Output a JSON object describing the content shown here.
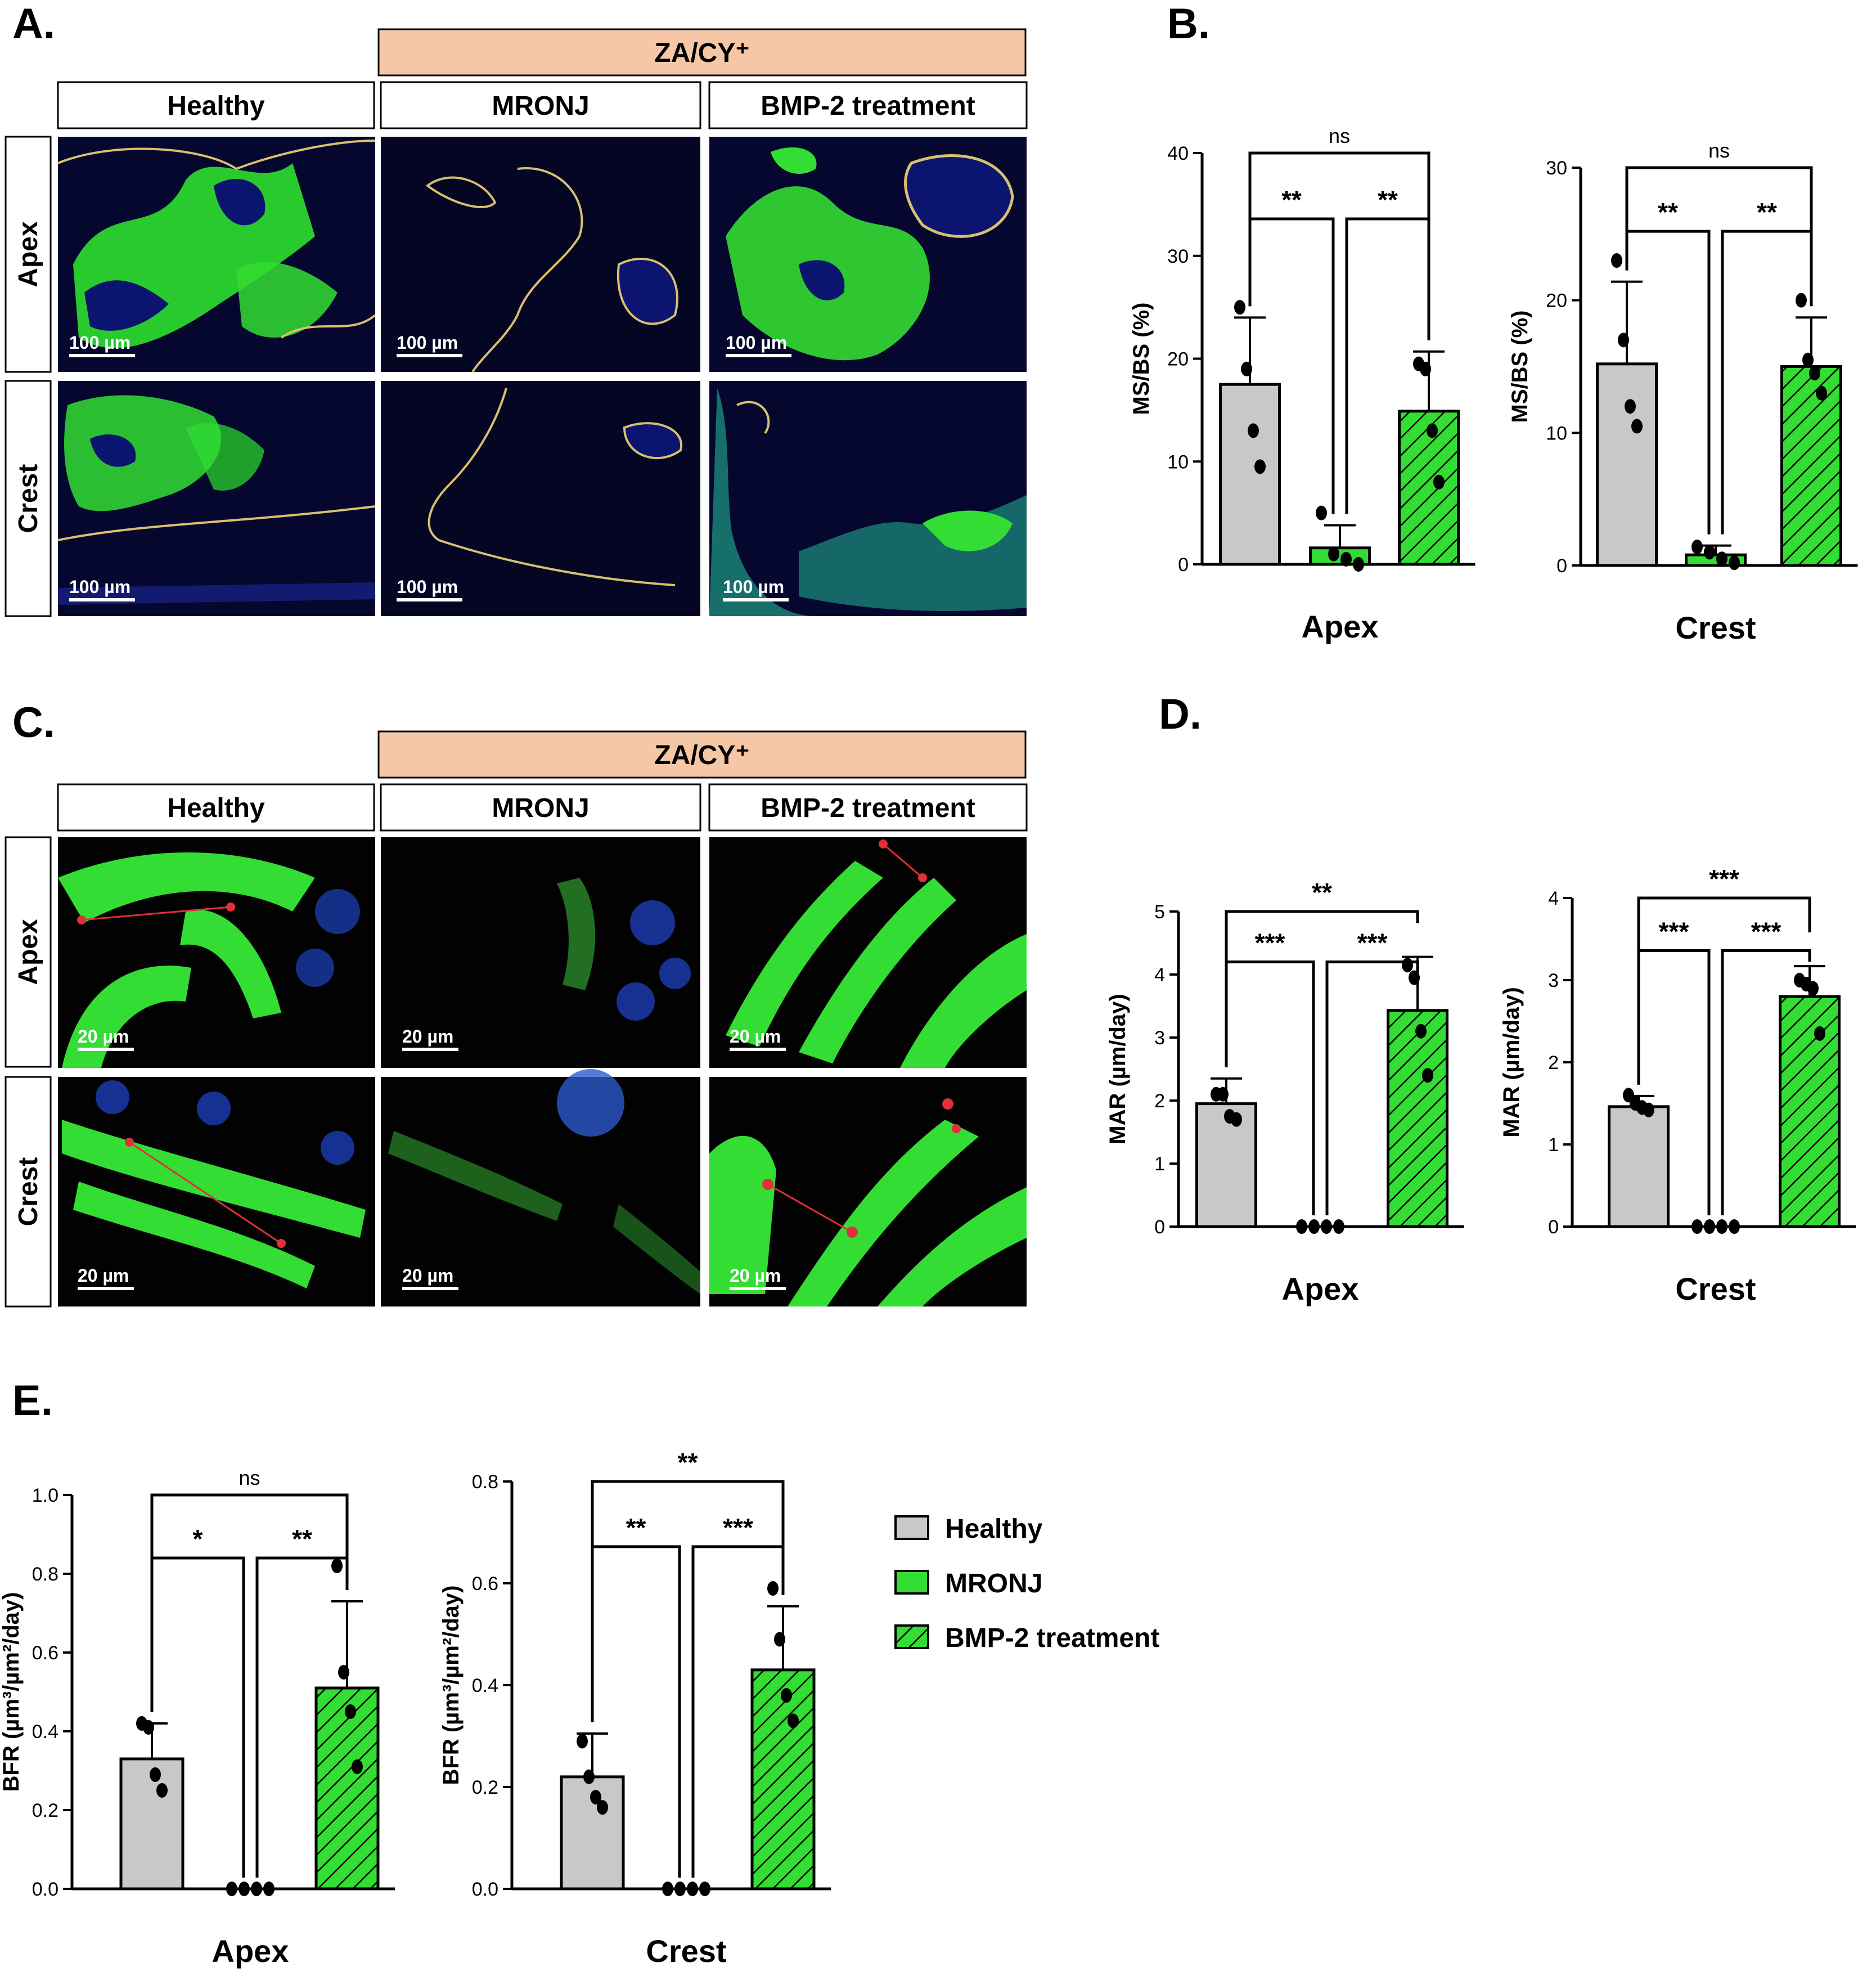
{
  "panel_labels": [
    "A.",
    "B.",
    "C.",
    "D.",
    "E."
  ],
  "micrographs": {
    "treatment_group": "ZA/CY⁺",
    "columns": [
      "Healthy",
      "MRONJ",
      "BMP-2 treatment"
    ],
    "rows": [
      "Apex",
      "Crest"
    ],
    "scale_bar_A": "100 µm",
    "scale_bar_C": "20 µm"
  },
  "legend": {
    "items": [
      {
        "label": "Healthy",
        "color": "#c8c8c8",
        "pattern": "solid"
      },
      {
        "label": "MRONJ",
        "color": "#33dd33",
        "pattern": "solid"
      },
      {
        "label": "BMP-2 treatment",
        "color": "#33dd33",
        "pattern": "hatch"
      }
    ]
  },
  "colors": {
    "healthy": "#c8c8c8",
    "mronj": "#33dd33",
    "bmp2": "#33dd33",
    "edge": "#000000"
  },
  "chart_data": [
    {
      "panel": "B.",
      "type": "bar",
      "xlabel": "Apex",
      "ylabel": "MS/BS (%)",
      "categories": [
        "Healthy",
        "MRONJ",
        "BMP-2 treatment"
      ],
      "values": [
        17.5,
        1.6,
        14.9
      ],
      "errors": [
        6.5,
        2.2,
        5.8
      ],
      "points": [
        [
          25,
          19,
          13,
          9.5
        ],
        [
          5,
          1,
          0.5,
          0
        ],
        [
          19.5,
          19,
          13,
          8
        ]
      ],
      "ylim": [
        0,
        40
      ],
      "yticks": [
        0,
        10,
        20,
        30,
        40
      ],
      "comparisons": [
        {
          "from": 0,
          "to": 1,
          "label": "**"
        },
        {
          "from": 1,
          "to": 2,
          "label": "**"
        },
        {
          "from": 0,
          "to": 2,
          "label": "ns"
        }
      ]
    },
    {
      "panel": "B.",
      "type": "bar",
      "xlabel": "Crest",
      "ylabel": "MS/BS (%)",
      "categories": [
        "Healthy",
        "MRONJ",
        "BMP-2 treatment"
      ],
      "values": [
        15.2,
        0.8,
        15.0
      ],
      "errors": [
        6.2,
        0.7,
        3.7
      ],
      "points": [
        [
          23,
          17,
          12,
          10.5
        ],
        [
          1.4,
          1,
          0.5,
          0.2
        ],
        [
          20,
          15.5,
          14.5,
          13
        ]
      ],
      "ylim": [
        0,
        30
      ],
      "yticks": [
        0,
        10,
        20,
        30
      ],
      "comparisons": [
        {
          "from": 0,
          "to": 1,
          "label": "**"
        },
        {
          "from": 1,
          "to": 2,
          "label": "**"
        },
        {
          "from": 0,
          "to": 2,
          "label": "ns"
        }
      ]
    },
    {
      "panel": "D.",
      "type": "bar",
      "xlabel": "Apex",
      "ylabel": "MAR (µm/day)",
      "categories": [
        "Healthy",
        "MRONJ",
        "BMP-2 treatment"
      ],
      "values": [
        1.95,
        0,
        3.43
      ],
      "errors": [
        0.4,
        0,
        0.85
      ],
      "points": [
        [
          2.1,
          2.1,
          1.75,
          1.7
        ],
        [
          0,
          0,
          0,
          0
        ],
        [
          4.15,
          3.95,
          3.1,
          2.4
        ]
      ],
      "ylim": [
        0,
        5
      ],
      "yticks": [
        0,
        1,
        2,
        3,
        4,
        5
      ],
      "comparisons": [
        {
          "from": 0,
          "to": 1,
          "label": "***"
        },
        {
          "from": 1,
          "to": 2,
          "label": "***"
        },
        {
          "from": 0,
          "to": 2,
          "label": "**"
        }
      ]
    },
    {
      "panel": "D.",
      "type": "bar",
      "xlabel": "Crest",
      "ylabel": "MAR (µm/day)",
      "categories": [
        "Healthy",
        "MRONJ",
        "BMP-2 treatment"
      ],
      "values": [
        1.46,
        0,
        2.8
      ],
      "errors": [
        0.13,
        0,
        0.37
      ],
      "points": [
        [
          1.6,
          1.5,
          1.45,
          1.42
        ],
        [
          0,
          0,
          0,
          0
        ],
        [
          3.0,
          2.95,
          2.9,
          2.35
        ]
      ],
      "ylim": [
        0,
        4
      ],
      "yticks": [
        0,
        1,
        2,
        3,
        4
      ],
      "comparisons": [
        {
          "from": 0,
          "to": 1,
          "label": "***"
        },
        {
          "from": 1,
          "to": 2,
          "label": "***"
        },
        {
          "from": 0,
          "to": 2,
          "label": "***"
        }
      ]
    },
    {
      "panel": "E.",
      "type": "bar",
      "xlabel": "Apex",
      "ylabel": "BFR (µm³/µm²/day)",
      "categories": [
        "Healthy",
        "MRONJ",
        "BMP-2 treatment"
      ],
      "values": [
        0.33,
        0,
        0.51
      ],
      "errors": [
        0.09,
        0,
        0.22
      ],
      "points": [
        [
          0.42,
          0.41,
          0.29,
          0.25
        ],
        [
          0,
          0,
          0,
          0
        ],
        [
          0.82,
          0.55,
          0.45,
          0.31
        ]
      ],
      "ylim": [
        0,
        1.0
      ],
      "yticks": [
        0.0,
        0.2,
        0.4,
        0.6,
        0.8,
        1.0
      ],
      "tick_decimals": 1,
      "comparisons": [
        {
          "from": 0,
          "to": 1,
          "label": "*"
        },
        {
          "from": 1,
          "to": 2,
          "label": "**"
        },
        {
          "from": 0,
          "to": 2,
          "label": "ns"
        }
      ]
    },
    {
      "panel": "E.",
      "type": "bar",
      "xlabel": "Crest",
      "ylabel": "BFR (µm³/µm²/day)",
      "categories": [
        "Healthy",
        "MRONJ",
        "BMP-2 treatment"
      ],
      "values": [
        0.22,
        0,
        0.43
      ],
      "errors": [
        0.085,
        0,
        0.125
      ],
      "points": [
        [
          0.29,
          0.22,
          0.18,
          0.16
        ],
        [
          0,
          0,
          0,
          0
        ],
        [
          0.59,
          0.49,
          0.38,
          0.33
        ]
      ],
      "ylim": [
        0,
        0.8
      ],
      "yticks": [
        0.0,
        0.2,
        0.4,
        0.6,
        0.8
      ],
      "tick_decimals": 1,
      "comparisons": [
        {
          "from": 0,
          "to": 1,
          "label": "**"
        },
        {
          "from": 1,
          "to": 2,
          "label": "***"
        },
        {
          "from": 0,
          "to": 2,
          "label": "**"
        }
      ]
    }
  ]
}
